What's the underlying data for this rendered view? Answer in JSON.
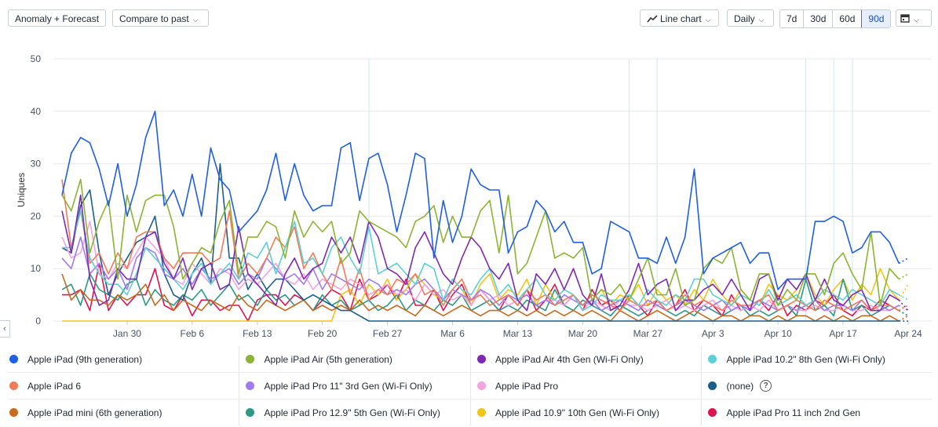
{
  "toolbar": {
    "anomaly_label": "Anomaly + Forecast",
    "compare_label": "Compare to past",
    "chart_type_label": "Line chart",
    "interval_label": "Daily",
    "ranges": [
      "7d",
      "30d",
      "60d",
      "90d"
    ],
    "active_range": "90d"
  },
  "chart_data": {
    "type": "line",
    "ylabel": "Uniques",
    "ylim": [
      0,
      50
    ],
    "yticks": [
      0,
      10,
      20,
      30,
      40,
      50
    ],
    "xticks": [
      "Jan 30",
      "Feb 6",
      "Feb 13",
      "Feb 20",
      "Feb 27",
      "Mar 6",
      "Mar 13",
      "Mar 20",
      "Mar 27",
      "Apr 3",
      "Apr 10",
      "Apr 17",
      "Apr 24"
    ],
    "xtick_index": [
      7,
      14,
      21,
      28,
      35,
      42,
      49,
      56,
      63,
      70,
      77,
      84,
      91
    ],
    "annotation_index": [
      33,
      61,
      64,
      80,
      83,
      85
    ],
    "series": [
      {
        "name": "Apple iPad (9th generation)",
        "color": "#1f5fe0",
        "values": [
          24,
          32,
          35,
          34,
          29,
          22,
          30,
          20,
          26,
          35,
          40,
          22,
          25,
          20,
          28,
          20,
          33,
          27,
          25,
          17,
          19,
          21,
          25,
          32,
          23,
          30,
          24,
          21,
          22,
          22,
          33,
          34,
          23,
          31,
          32,
          26,
          17,
          24,
          32,
          31,
          12,
          23,
          15,
          20,
          29,
          26,
          25,
          25,
          13,
          17,
          18,
          23,
          21,
          17,
          19,
          15,
          15,
          9,
          10,
          19,
          18,
          17,
          12,
          12,
          11,
          16,
          11,
          16,
          29,
          9,
          12,
          13,
          14,
          15,
          11,
          13,
          13,
          6,
          8,
          8,
          8,
          19,
          19,
          20,
          19,
          13,
          14,
          17,
          17,
          15,
          11,
          12
        ]
      },
      {
        "name": "Apple iPad Air (5th generation)",
        "color": "#8bb432",
        "values": [
          24,
          21,
          27,
          13,
          19,
          23,
          8,
          24,
          17,
          23,
          24,
          24,
          18,
          8,
          11,
          14,
          13,
          19,
          23,
          9,
          16,
          16,
          19,
          18,
          12,
          21,
          16,
          19,
          17,
          19,
          11,
          13,
          21,
          19,
          18,
          17,
          16,
          14,
          19,
          20,
          22,
          15,
          20,
          16,
          16,
          21,
          23,
          13,
          24,
          9,
          11,
          16,
          21,
          12,
          13,
          12,
          14,
          4,
          6,
          5,
          7,
          4,
          8,
          12,
          5,
          5,
          10,
          3,
          4,
          10,
          12,
          11,
          14,
          6,
          4,
          9,
          9,
          3,
          6,
          4,
          9,
          9,
          5,
          11,
          13,
          9,
          6,
          17,
          3,
          10,
          8,
          9
        ]
      },
      {
        "name": "Apple iPad Air 4th Gen (Wi-Fi Only)",
        "color": "#7e2ab0",
        "values": [
          21,
          13,
          24,
          8,
          3,
          4,
          10,
          8,
          8,
          16,
          17,
          11,
          8,
          12,
          6,
          10,
          11,
          6,
          7,
          18,
          9,
          7,
          5,
          3,
          9,
          12,
          8,
          10,
          11,
          16,
          13,
          16,
          11,
          19,
          16,
          10,
          9,
          7,
          14,
          17,
          13,
          9,
          7,
          12,
          16,
          14,
          10,
          8,
          11,
          4,
          2,
          9,
          7,
          10,
          6,
          10,
          5,
          3,
          9,
          2,
          3,
          6,
          11,
          5,
          7,
          8,
          2,
          4,
          4,
          6,
          7,
          5,
          8,
          5,
          2,
          8,
          9,
          4,
          8,
          6,
          9,
          4,
          8,
          4,
          3,
          5,
          6,
          2,
          2,
          5,
          4,
          2
        ]
      },
      {
        "name": "Apple iPad 10.2\" 8th Gen (Wi-Fi Only)",
        "color": "#5fcfd4",
        "values": [
          14,
          14,
          21,
          12,
          9,
          7,
          7,
          5,
          9,
          14,
          12,
          10,
          8,
          6,
          9,
          11,
          7,
          9,
          11,
          8,
          13,
          12,
          15,
          9,
          14,
          19,
          11,
          12,
          9,
          14,
          16,
          12,
          9,
          18,
          9,
          10,
          11,
          9,
          7,
          11,
          10,
          4,
          8,
          6,
          5,
          8,
          10,
          5,
          7,
          4,
          6,
          8,
          5,
          4,
          6,
          5,
          2,
          3,
          5,
          4,
          4,
          5,
          3,
          6,
          4,
          3,
          5,
          4,
          8,
          8,
          5,
          4,
          3,
          5,
          4,
          3,
          6,
          3,
          4,
          5,
          3,
          4,
          6,
          5,
          4,
          6,
          5,
          4,
          3,
          6,
          5,
          4
        ]
      },
      {
        "name": "Apple iPad 6",
        "color": "#f07a5a",
        "values": [
          27,
          14,
          21,
          11,
          13,
          9,
          13,
          10,
          16,
          17,
          17,
          12,
          10,
          13,
          13,
          13,
          11,
          12,
          21,
          8,
          11,
          9,
          12,
          16,
          14,
          18,
          10,
          13,
          9,
          6,
          12,
          5,
          10,
          4,
          6,
          5,
          8,
          7,
          9,
          5,
          6,
          3,
          6,
          8,
          4,
          5,
          3,
          4,
          5,
          3,
          6,
          4,
          5,
          3,
          4,
          5,
          3,
          5,
          4,
          3,
          2,
          4,
          3,
          3,
          4,
          2,
          3,
          5,
          3,
          4,
          3,
          2,
          4,
          3,
          3,
          4,
          5,
          2,
          3,
          4,
          3,
          2,
          4,
          3,
          2,
          3,
          4,
          2,
          3,
          3,
          2,
          3
        ]
      },
      {
        "name": "Apple iPad Pro 11\" 3rd Gen (Wi-Fi Only)",
        "color": "#a07af0",
        "values": [
          12,
          10,
          16,
          9,
          11,
          8,
          10,
          6,
          12,
          14,
          13,
          9,
          8,
          10,
          7,
          10,
          8,
          9,
          10,
          7,
          9,
          8,
          12,
          10,
          8,
          9,
          7,
          10,
          6,
          9,
          8,
          7,
          6,
          8,
          7,
          5,
          6,
          5,
          7,
          8,
          6,
          4,
          6,
          5,
          4,
          6,
          5,
          3,
          5,
          4,
          5,
          3,
          4,
          3,
          5,
          4,
          3,
          4,
          2,
          3,
          4,
          3,
          2,
          4,
          3,
          2,
          3,
          4,
          3,
          2,
          3,
          4,
          2,
          3,
          2,
          4,
          3,
          2,
          3,
          2,
          3,
          4,
          2,
          3,
          3,
          2,
          4,
          2,
          3,
          2,
          3,
          2
        ]
      },
      {
        "name": "Apple iPad Pro",
        "color": "#f4a2e0",
        "values": [
          16,
          12,
          13,
          19,
          9,
          8,
          11,
          10,
          13,
          16,
          14,
          12,
          8,
          7,
          11,
          9,
          7,
          10,
          9,
          6,
          8,
          7,
          9,
          11,
          8,
          7,
          9,
          6,
          8,
          7,
          6,
          8,
          7,
          5,
          6,
          7,
          5,
          6,
          4,
          7,
          5,
          6,
          4,
          5,
          3,
          6,
          4,
          5,
          3,
          4,
          5,
          3,
          4,
          4,
          3,
          5,
          2,
          4,
          3,
          2,
          4,
          3,
          3,
          2,
          3,
          4,
          2,
          3,
          2,
          3,
          4,
          2,
          3,
          2,
          3,
          2,
          4,
          2,
          3,
          2,
          2,
          3,
          2,
          2,
          3,
          2,
          2,
          3,
          2,
          2,
          3,
          2
        ]
      },
      {
        "name": "(none)",
        "color": "#1b5e8a",
        "values": [
          14,
          13,
          22,
          25,
          13,
          5,
          9,
          12,
          15,
          16,
          20,
          9,
          5,
          4,
          9,
          12,
          7,
          30,
          12,
          12,
          6,
          9,
          6,
          8,
          8,
          6,
          4,
          5,
          4,
          3,
          2,
          2,
          1,
          0,
          0,
          0,
          0,
          0,
          0,
          0,
          0,
          0,
          0,
          0,
          0,
          0,
          0,
          0,
          0,
          0,
          0,
          0,
          0,
          0,
          0,
          0,
          0,
          0,
          0,
          0,
          0,
          0,
          0,
          0,
          0,
          0,
          0,
          0,
          0,
          0,
          0,
          0,
          0,
          0,
          0,
          0,
          0,
          0,
          0,
          0,
          0,
          0,
          0,
          0,
          0,
          0,
          0,
          0,
          0,
          0,
          0,
          0
        ]
      },
      {
        "name": "Apple iPad mini (6th generation)",
        "color": "#c86a1e",
        "values": [
          9,
          4,
          6,
          4,
          4,
          3,
          5,
          4,
          5,
          7,
          3,
          5,
          2,
          4,
          3,
          2,
          4,
          3,
          2,
          5,
          3,
          2,
          4,
          3,
          2,
          3,
          4,
          2,
          3,
          2,
          3,
          2,
          4,
          2,
          3,
          2,
          3,
          2,
          1,
          3,
          2,
          1,
          2,
          3,
          2,
          1,
          2,
          2,
          1,
          2,
          1,
          2,
          1,
          2,
          1,
          2,
          1,
          2,
          1,
          0,
          2,
          1,
          0,
          1,
          2,
          1,
          0,
          1,
          2,
          1,
          0,
          1,
          1,
          0,
          1,
          1,
          0,
          1,
          0,
          1,
          1,
          0,
          1,
          0,
          1,
          0,
          1,
          1,
          0,
          1,
          0,
          1
        ]
      },
      {
        "name": "Apple iPad Pro 12.9\" 5th Gen (Wi-Fi Only)",
        "color": "#2b9a84",
        "values": [
          6,
          7,
          3,
          9,
          6,
          5,
          4,
          7,
          8,
          3,
          6,
          4,
          3,
          5,
          4,
          6,
          3,
          5,
          7,
          4,
          5,
          3,
          6,
          4,
          5,
          3,
          4,
          2,
          5,
          3,
          4,
          2,
          3,
          4,
          2,
          3,
          5,
          2,
          4,
          3,
          2,
          4,
          3,
          5,
          2,
          3,
          4,
          2,
          3,
          2,
          4,
          3,
          2,
          6,
          3,
          2,
          4,
          3,
          2,
          1,
          3,
          2,
          1,
          2,
          3,
          2,
          1,
          2,
          1,
          3,
          2,
          1,
          2,
          3,
          1,
          2,
          1,
          2,
          3,
          1,
          8,
          2,
          3,
          1,
          8,
          2,
          3,
          1,
          2,
          3,
          2,
          1
        ]
      },
      {
        "name": "Apple iPad 10.9\" 10th Gen (Wi-Fi Only)",
        "color": "#f0c419",
        "values": [
          0,
          0,
          0,
          0,
          0,
          0,
          0,
          0,
          0,
          0,
          0,
          0,
          0,
          0,
          0,
          0,
          0,
          0,
          0,
          0,
          0,
          0,
          0,
          0,
          0,
          0,
          0,
          0,
          0,
          0,
          5,
          6,
          3,
          7,
          5,
          8,
          4,
          6,
          9,
          7,
          5,
          4,
          8,
          6,
          3,
          7,
          9,
          4,
          6,
          5,
          8,
          3,
          7,
          4,
          6,
          5,
          3,
          4,
          6,
          3,
          5,
          4,
          7,
          3,
          6,
          4,
          5,
          3,
          6,
          4,
          8,
          5,
          3,
          6,
          4,
          3,
          7,
          5,
          4,
          6,
          9,
          5,
          3,
          6,
          8,
          4,
          7,
          5,
          10,
          6,
          4,
          7
        ]
      },
      {
        "name": "Apple iPad Pro 11 inch 2nd Gen",
        "color": "#dc1450",
        "values": [
          5,
          5,
          6,
          2,
          11,
          2,
          5,
          3,
          5,
          5,
          10,
          3,
          2,
          5,
          1,
          4,
          4,
          2,
          3,
          3,
          0,
          4,
          5,
          5,
          3,
          5,
          4,
          2,
          4,
          6,
          5,
          2,
          8,
          4,
          5,
          7,
          4,
          8,
          3,
          3,
          6,
          2,
          5,
          7,
          3,
          6,
          4,
          2,
          5,
          3,
          6,
          2,
          4,
          7,
          3,
          5,
          2,
          6,
          3,
          4,
          2,
          5,
          3,
          1,
          4,
          2,
          3,
          6,
          2,
          4,
          3,
          1,
          5,
          2,
          3,
          4,
          2,
          5,
          1,
          3,
          2,
          4,
          3,
          5,
          2,
          1,
          3,
          2,
          4,
          3,
          2,
          1
        ]
      }
    ]
  }
}
